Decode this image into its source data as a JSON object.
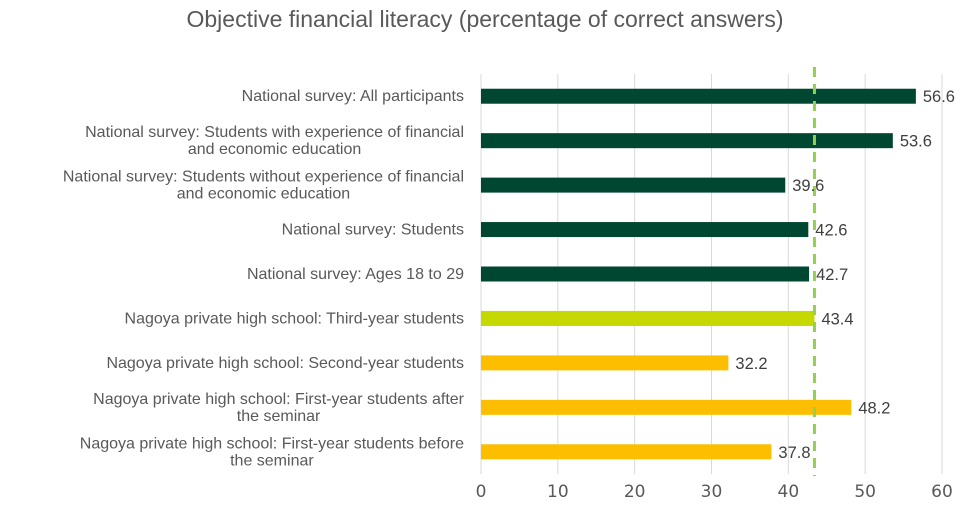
{
  "chart_data": {
    "type": "bar",
    "orientation": "horizontal",
    "title": "Objective financial literacy (percentage of correct answers)",
    "categories": [
      [
        "National survey: All participants"
      ],
      [
        "National survey: Students with experience of financial",
        "and economic education"
      ],
      [
        "National survey: Students without experience of financial",
        "and economic education"
      ],
      [
        "National survey: Students"
      ],
      [
        "National survey: Ages 18 to 29"
      ],
      [
        "Nagoya private high school: Third-year students"
      ],
      [
        "Nagoya private high school: Second-year students"
      ],
      [
        "Nagoya private high school: First-year students after",
        "the seminar"
      ],
      [
        "Nagoya private high school: First-year students before",
        "the seminar"
      ]
    ],
    "values": [
      56.6,
      53.6,
      39.6,
      42.6,
      42.7,
      43.4,
      32.2,
      48.2,
      37.8
    ],
    "value_labels": [
      "56.6",
      "53.6",
      "39.6",
      "42.6",
      "42.7",
      "43.4",
      "32.2",
      "48.2",
      "37.8"
    ],
    "colors": [
      "#004731",
      "#004731",
      "#004731",
      "#004731",
      "#004731",
      "#c5d800",
      "#fdbe00",
      "#fdbe00",
      "#fdbe00"
    ],
    "xlim": [
      0,
      60
    ],
    "xticks": [
      "0",
      "10",
      "20",
      "30",
      "40",
      "50",
      "60"
    ],
    "reference_line": {
      "value": 43.4,
      "color": "#92d050",
      "style": "dashed"
    },
    "grid": true,
    "xlabel": "",
    "ylabel": ""
  }
}
